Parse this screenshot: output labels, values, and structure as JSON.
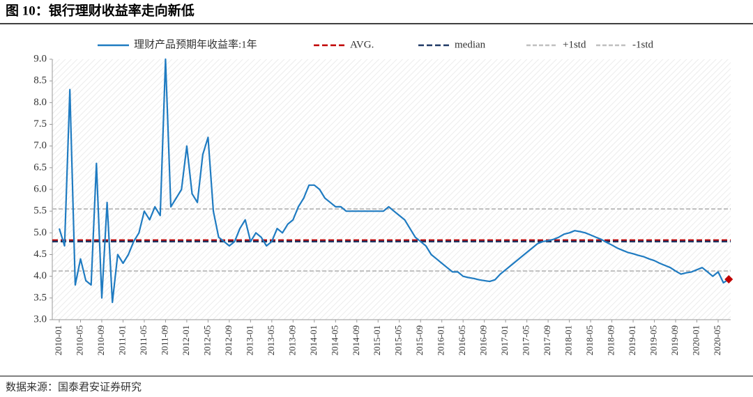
{
  "chart_data": {
    "type": "line",
    "title": "图 10：银行理财收益率走向新低",
    "source": "数据来源：国泰君安证券研究",
    "categories": [
      "2010-01",
      null,
      null,
      null,
      "2010-05",
      null,
      null,
      null,
      "2010-09",
      null,
      null,
      null,
      "2011-01",
      null,
      null,
      null,
      "2011-05",
      null,
      null,
      null,
      "2011-09",
      null,
      null,
      null,
      "2012-01",
      null,
      null,
      null,
      "2012-05",
      null,
      null,
      null,
      "2012-09",
      null,
      null,
      null,
      "2013-01",
      null,
      null,
      null,
      "2013-05",
      null,
      null,
      null,
      "2013-09",
      null,
      null,
      null,
      "2014-01",
      null,
      null,
      null,
      "2014-05",
      null,
      null,
      null,
      "2014-09",
      null,
      null,
      null,
      "2015-01",
      null,
      null,
      null,
      "2015-05",
      null,
      null,
      null,
      "2015-09",
      null,
      null,
      null,
      "2016-01",
      null,
      null,
      null,
      "2016-05",
      null,
      null,
      null,
      "2016-09",
      null,
      null,
      null,
      "2017-01",
      null,
      null,
      null,
      "2017-05",
      null,
      null,
      null,
      "2017-09",
      null,
      null,
      null,
      "2018-01",
      null,
      null,
      null,
      "2018-05",
      null,
      null,
      null,
      "2018-09",
      null,
      null,
      null,
      "2019-01",
      null,
      null,
      null,
      "2019-05",
      null,
      null,
      null,
      "2019-09",
      null,
      null,
      null,
      "2020-01",
      null,
      null,
      null,
      "2020-05",
      null,
      null
    ],
    "series": [
      {
        "name": "理财产品预期年收益率:1年",
        "color": "#1f7bc1",
        "values": [
          5.1,
          4.7,
          8.3,
          3.8,
          4.4,
          3.9,
          3.8,
          6.6,
          3.5,
          5.7,
          3.4,
          4.5,
          4.3,
          4.5,
          4.8,
          5.0,
          5.5,
          5.3,
          5.6,
          5.4,
          9.0,
          5.6,
          5.8,
          6.0,
          7.0,
          5.9,
          5.7,
          6.8,
          7.2,
          5.5,
          4.9,
          4.8,
          4.7,
          4.8,
          5.1,
          5.3,
          4.8,
          5.0,
          4.9,
          4.7,
          4.8,
          5.1,
          5.0,
          5.2,
          5.3,
          5.6,
          5.8,
          6.1,
          6.1,
          6.0,
          5.8,
          5.7,
          5.6,
          5.6,
          5.5,
          5.5,
          5.5,
          5.5,
          5.5,
          5.5,
          5.5,
          5.5,
          5.6,
          5.5,
          5.4,
          5.3,
          5.1,
          4.9,
          4.8,
          4.7,
          4.5,
          4.4,
          4.3,
          4.2,
          4.1,
          4.1,
          4.0,
          3.97,
          3.95,
          3.92,
          3.9,
          3.88,
          3.92,
          4.05,
          4.15,
          4.25,
          4.35,
          4.45,
          4.55,
          4.65,
          4.75,
          4.8,
          4.82,
          4.85,
          4.9,
          4.97,
          5.0,
          5.05,
          5.03,
          5.0,
          4.95,
          4.9,
          4.85,
          4.78,
          4.72,
          4.65,
          4.6,
          4.55,
          4.52,
          4.48,
          4.45,
          4.4,
          4.36,
          4.3,
          4.25,
          4.2,
          4.12,
          4.05,
          4.08,
          4.1,
          4.15,
          4.2,
          4.1,
          4.0,
          4.1,
          3.85,
          3.93
        ]
      }
    ],
    "reference_lines": [
      {
        "name": "AVG.",
        "value": 4.83,
        "color": "#c00000"
      },
      {
        "name": "median",
        "value": 4.8,
        "color": "#1f3864"
      },
      {
        "name": "+1std",
        "value": 5.55,
        "color": "#bfbfbf"
      },
      {
        "name": "-1std",
        "value": 4.12,
        "color": "#bfbfbf"
      }
    ],
    "last_marker_color": "#c00000",
    "ylim": [
      3,
      9
    ],
    "yticks": [
      {
        "value": 3,
        "label": "3.0"
      },
      3.5,
      {
        "value": 4,
        "label": "4.0"
      },
      4.5,
      {
        "value": 5,
        "label": "5.0"
      },
      5.5,
      {
        "value": 6,
        "label": "6.0"
      },
      6.5,
      {
        "value": 7,
        "label": "7.0"
      },
      7.5,
      {
        "value": 8,
        "label": "8.0"
      },
      8.5,
      {
        "value": 9,
        "label": "9.0"
      }
    ]
  }
}
